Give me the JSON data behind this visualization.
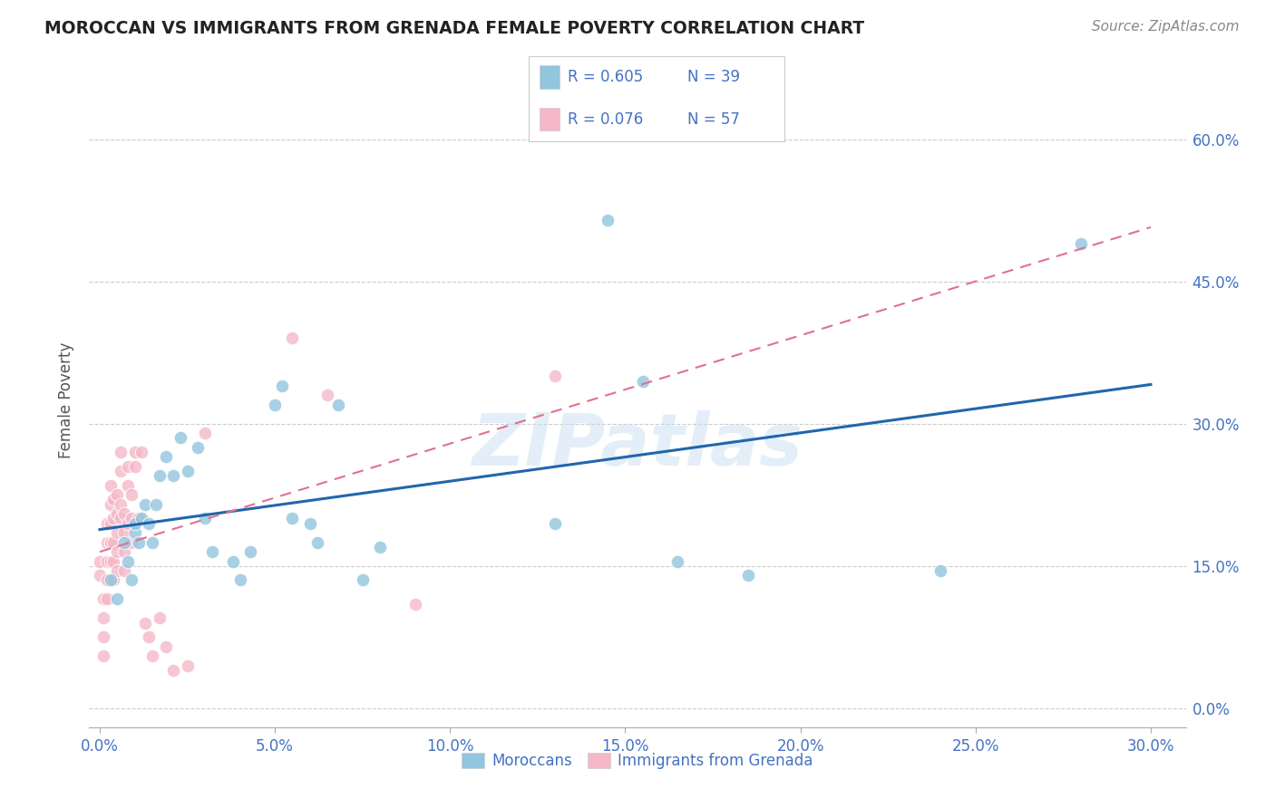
{
  "title": "MOROCCAN VS IMMIGRANTS FROM GRENADA FEMALE POVERTY CORRELATION CHART",
  "source": "Source: ZipAtlas.com",
  "xlim": [
    -0.003,
    0.31
  ],
  "ylim": [
    -0.02,
    0.67
  ],
  "ylabel": "Female Poverty",
  "legend_blue_R": "R = 0.605",
  "legend_blue_N": "N = 39",
  "legend_pink_R": "R = 0.076",
  "legend_pink_N": "N = 57",
  "legend_blue_label": "Moroccans",
  "legend_pink_label": "Immigrants from Grenada",
  "blue_color": "#92c5de",
  "pink_color": "#f4b8c8",
  "blue_line_color": "#2166ac",
  "pink_line_color": "#e07090",
  "text_color": "#4472c4",
  "watermark": "ZIPatlas",
  "blue_x": [
    0.003,
    0.005,
    0.007,
    0.008,
    0.009,
    0.01,
    0.01,
    0.011,
    0.012,
    0.013,
    0.014,
    0.015,
    0.016,
    0.017,
    0.019,
    0.021,
    0.023,
    0.025,
    0.028,
    0.03,
    0.032,
    0.038,
    0.04,
    0.043,
    0.05,
    0.052,
    0.055,
    0.06,
    0.062,
    0.068,
    0.075,
    0.08,
    0.13,
    0.145,
    0.155,
    0.165,
    0.185,
    0.24,
    0.28
  ],
  "blue_y": [
    0.135,
    0.115,
    0.175,
    0.155,
    0.135,
    0.185,
    0.195,
    0.175,
    0.2,
    0.215,
    0.195,
    0.175,
    0.215,
    0.245,
    0.265,
    0.245,
    0.285,
    0.25,
    0.275,
    0.2,
    0.165,
    0.155,
    0.135,
    0.165,
    0.32,
    0.34,
    0.2,
    0.195,
    0.175,
    0.32,
    0.135,
    0.17,
    0.195,
    0.515,
    0.345,
    0.155,
    0.14,
    0.145,
    0.49
  ],
  "pink_x": [
    0.0,
    0.0,
    0.001,
    0.001,
    0.001,
    0.001,
    0.002,
    0.002,
    0.002,
    0.002,
    0.002,
    0.003,
    0.003,
    0.003,
    0.003,
    0.003,
    0.003,
    0.004,
    0.004,
    0.004,
    0.004,
    0.004,
    0.005,
    0.005,
    0.005,
    0.005,
    0.005,
    0.006,
    0.006,
    0.006,
    0.006,
    0.007,
    0.007,
    0.007,
    0.007,
    0.008,
    0.008,
    0.008,
    0.009,
    0.009,
    0.009,
    0.01,
    0.01,
    0.011,
    0.012,
    0.013,
    0.014,
    0.015,
    0.017,
    0.019,
    0.021,
    0.025,
    0.03,
    0.055,
    0.065,
    0.09,
    0.13
  ],
  "pink_y": [
    0.155,
    0.14,
    0.055,
    0.075,
    0.095,
    0.115,
    0.115,
    0.135,
    0.155,
    0.175,
    0.195,
    0.175,
    0.195,
    0.215,
    0.235,
    0.155,
    0.175,
    0.135,
    0.155,
    0.175,
    0.2,
    0.22,
    0.145,
    0.165,
    0.185,
    0.205,
    0.225,
    0.25,
    0.27,
    0.2,
    0.215,
    0.145,
    0.165,
    0.185,
    0.205,
    0.235,
    0.255,
    0.195,
    0.2,
    0.225,
    0.175,
    0.255,
    0.27,
    0.2,
    0.27,
    0.09,
    0.075,
    0.055,
    0.095,
    0.065,
    0.04,
    0.045,
    0.29,
    0.39,
    0.33,
    0.11,
    0.35
  ]
}
